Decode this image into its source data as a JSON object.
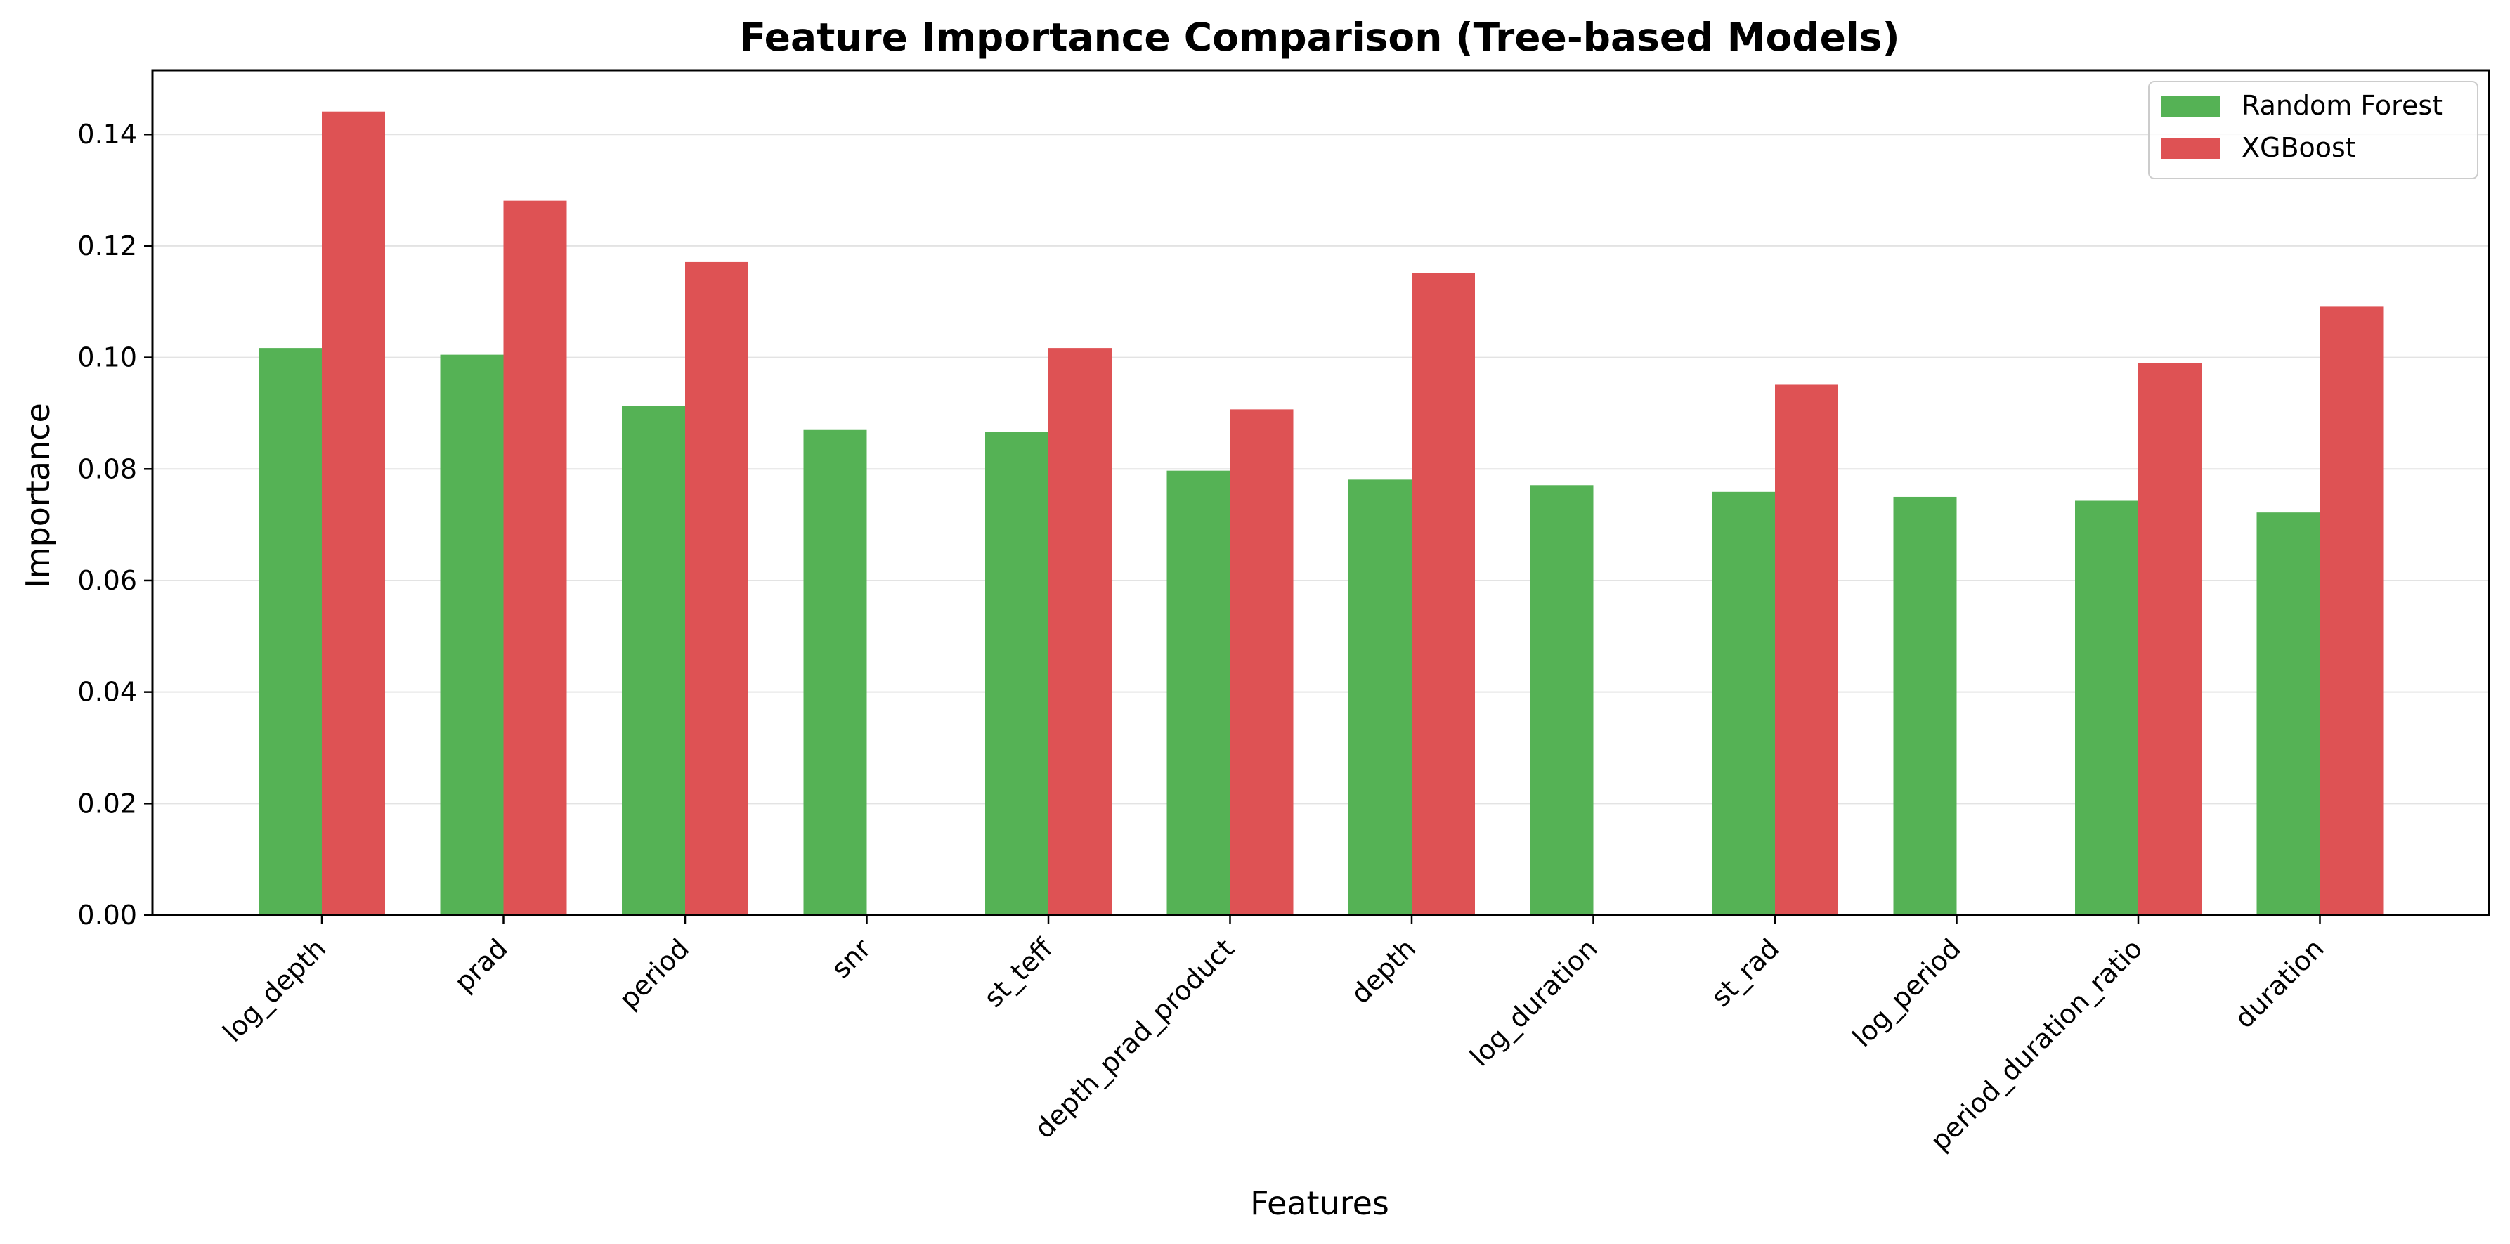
{
  "chart_data": {
    "type": "bar",
    "title": "Feature Importance Comparison (Tree-based Models)",
    "xlabel": "Features",
    "ylabel": "Importance",
    "ylim": [
      0,
      0.1515
    ],
    "yticks": [
      "0.00",
      "0.02",
      "0.04",
      "0.06",
      "0.08",
      "0.10",
      "0.12",
      "0.14"
    ],
    "grid": "horizontal",
    "legend_position": "top-right",
    "categories": [
      "log_depth",
      "prad",
      "period",
      "snr",
      "st_teff",
      "depth_prad_product",
      "depth",
      "log_duration",
      "st_rad",
      "log_period",
      "period_duration_ratio",
      "duration"
    ],
    "series": [
      {
        "name": "Random Forest",
        "color": "#55b255",
        "values": [
          0.1017,
          0.1005,
          0.0913,
          0.087,
          0.0866,
          0.0797,
          0.0781,
          0.0771,
          0.0759,
          0.075,
          0.0743,
          0.0722
        ]
      },
      {
        "name": "XGBoost",
        "color": "#de5254",
        "values": [
          0.1441,
          0.1281,
          0.1171,
          null,
          0.1017,
          0.0907,
          0.1151,
          null,
          0.0951,
          null,
          0.099,
          0.1091
        ]
      }
    ]
  }
}
